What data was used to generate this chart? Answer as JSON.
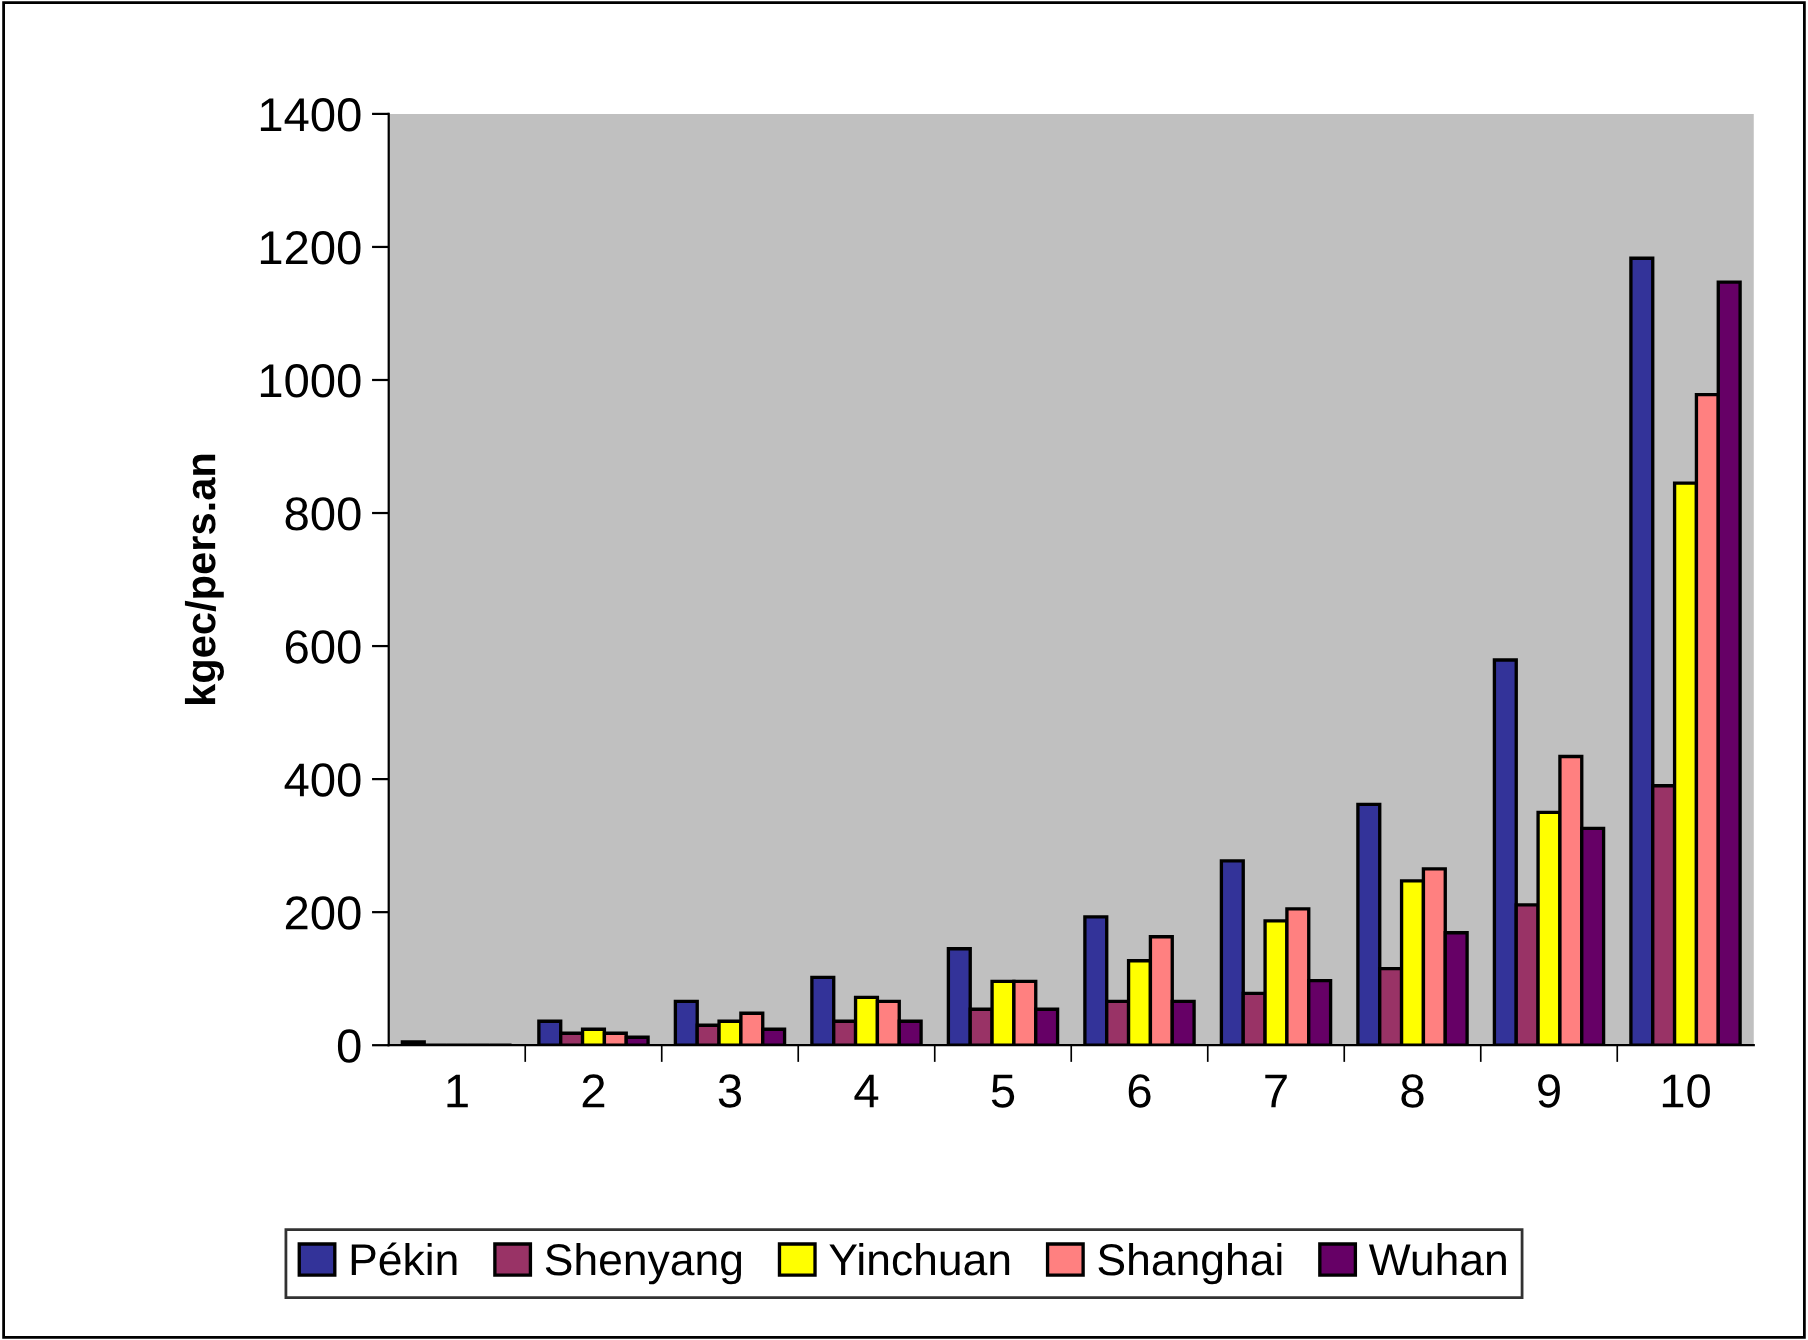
{
  "chart_data": {
    "type": "bar",
    "ylabel": "kgec/pers.an",
    "categories": [
      "1",
      "2",
      "3",
      "4",
      "5",
      "6",
      "7",
      "8",
      "9",
      "10"
    ],
    "series": [
      {
        "name": "Pékin",
        "color": "#333399",
        "values": [
          5,
          36,
          66,
          102,
          145,
          193,
          277,
          362,
          579,
          1183
        ]
      },
      {
        "name": "Shenyang",
        "color": "#993366",
        "values": [
          null,
          18,
          30,
          36,
          54,
          66,
          78,
          115,
          211,
          390
        ]
      },
      {
        "name": "Yinchuan",
        "color": "#ffff00",
        "values": [
          null,
          24,
          36,
          72,
          96,
          127,
          187,
          247,
          350,
          845
        ]
      },
      {
        "name": "Shanghai",
        "color": "#ff8080",
        "values": [
          null,
          18,
          48,
          66,
          96,
          163,
          205,
          265,
          434,
          978
        ]
      },
      {
        "name": "Wuhan",
        "color": "#660066",
        "values": [
          null,
          12,
          24,
          36,
          54,
          66,
          97,
          169,
          326,
          1147
        ]
      }
    ],
    "ylim": [
      0,
      1400
    ],
    "yticks": [
      0,
      200,
      400,
      600,
      800,
      1000,
      1200,
      1400
    ],
    "grid": false,
    "legend": "bottom"
  }
}
